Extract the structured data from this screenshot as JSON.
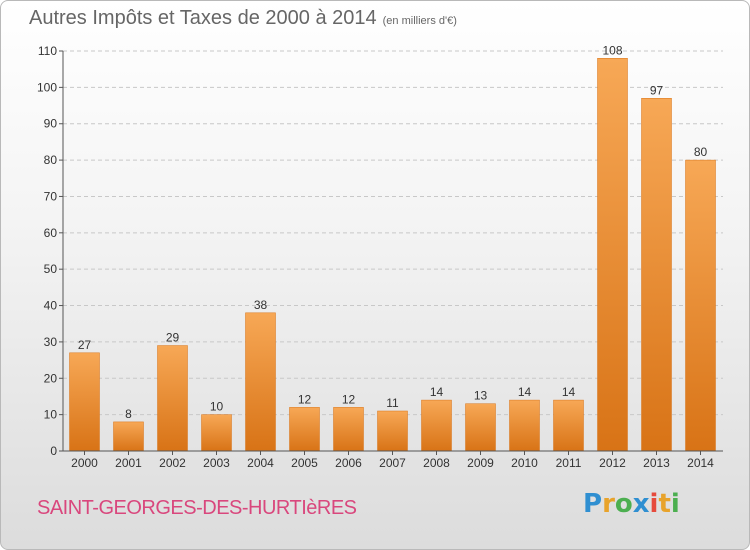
{
  "header": {
    "title": "Autres Impôts et Taxes de 2000 à 2014",
    "subtitle": "(en milliers d'€)"
  },
  "footer": {
    "place_name": "SAINT-GEORGES-DES-HURTIèRES",
    "logo_text": "Proxiti",
    "logo_colors": [
      "#2f8fd1",
      "#e8a32b",
      "#4caf50",
      "#2f8fd1",
      "#e64a3c",
      "#e8a32b",
      "#4caf50"
    ]
  },
  "colors": {
    "bar": "#f0892c",
    "bar_light": "#f7a856",
    "bar_dark": "#d87316",
    "axis": "#555555",
    "grid": "#c8c8c8",
    "text": "#333333"
  },
  "chart_data": {
    "type": "bar",
    "title": "Autres Impôts et Taxes de 2000 à 2014",
    "subtitle": "(en milliers d'€)",
    "categories": [
      "2000",
      "2001",
      "2002",
      "2003",
      "2004",
      "2005",
      "2006",
      "2007",
      "2008",
      "2009",
      "2010",
      "2011",
      "2012",
      "2013",
      "2014"
    ],
    "values": [
      27,
      8,
      29,
      10,
      38,
      12,
      12,
      11,
      14,
      13,
      14,
      14,
      108,
      97,
      80
    ],
    "ylim": [
      0,
      110
    ],
    "yticks": [
      0,
      10,
      20,
      30,
      40,
      50,
      60,
      70,
      80,
      90,
      100,
      110
    ],
    "grid": true,
    "data_labels": true
  }
}
